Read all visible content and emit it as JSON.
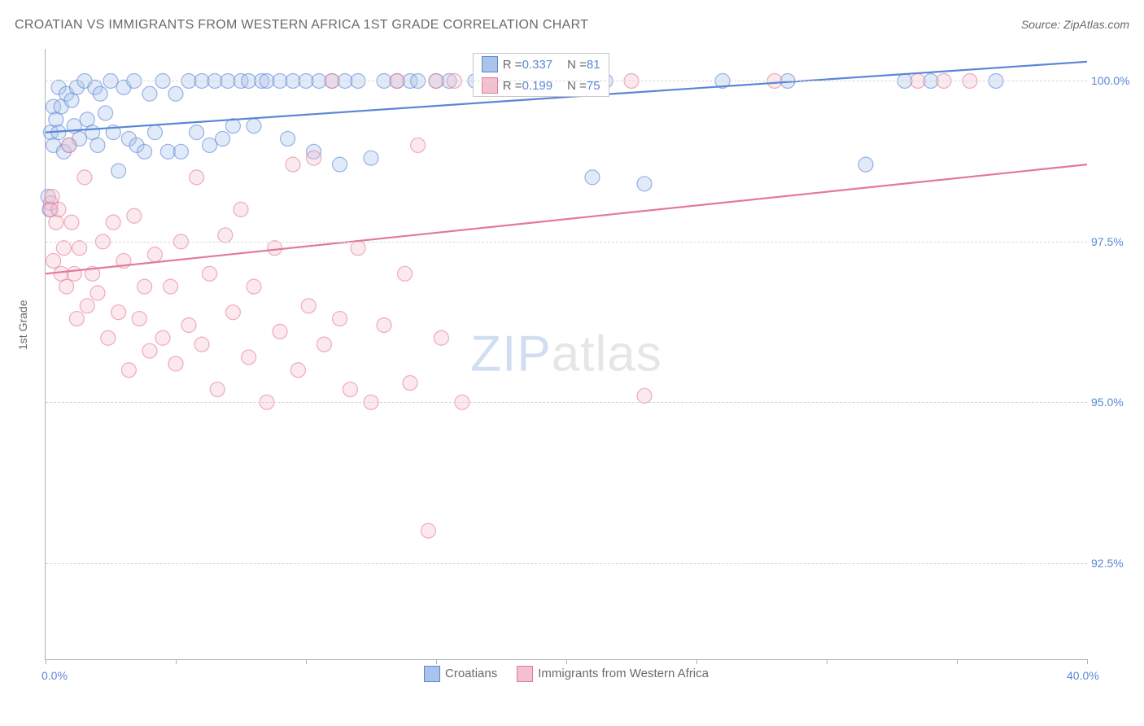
{
  "title": "CROATIAN VS IMMIGRANTS FROM WESTERN AFRICA 1ST GRADE CORRELATION CHART",
  "source": "Source: ZipAtlas.com",
  "ylabel": "1st Grade",
  "watermark_a": "ZIP",
  "watermark_b": "atlas",
  "chart": {
    "type": "scatter",
    "xlim": [
      0,
      40
    ],
    "ylim": [
      91,
      100.5
    ],
    "xtick_positions": [
      0,
      5,
      10,
      15,
      20,
      25,
      30,
      35,
      40
    ],
    "xtick_labels": {
      "0": "0.0%",
      "40": "40.0%"
    },
    "ytick_positions": [
      92.5,
      95.0,
      97.5,
      100.0
    ],
    "ytick_labels": [
      "92.5%",
      "95.0%",
      "97.5%",
      "100.0%"
    ],
    "grid_color": "#d8d8d8",
    "background_color": "#ffffff",
    "axis_color": "#b0b0b0",
    "label_color": "#5b86d6",
    "marker_radius": 9,
    "marker_opacity": 0.35,
    "line_width": 2.2
  },
  "series": [
    {
      "name": "Croatians",
      "label": "Croatians",
      "color": "#6699dd",
      "fill": "#a8c4ea",
      "stroke": "#5b86d6",
      "R": "0.337",
      "N": "81",
      "trend": {
        "x1": 0,
        "y1": 99.2,
        "x2": 40,
        "y2": 100.3
      },
      "points": [
        [
          0.1,
          98.2
        ],
        [
          0.15,
          98.0
        ],
        [
          0.2,
          99.2
        ],
        [
          0.3,
          99.0
        ],
        [
          0.3,
          99.6
        ],
        [
          0.4,
          99.4
        ],
        [
          0.5,
          99.9
        ],
        [
          0.5,
          99.2
        ],
        [
          0.6,
          99.6
        ],
        [
          0.7,
          98.9
        ],
        [
          0.8,
          99.8
        ],
        [
          0.9,
          99.0
        ],
        [
          1.0,
          99.7
        ],
        [
          1.1,
          99.3
        ],
        [
          1.2,
          99.9
        ],
        [
          1.3,
          99.1
        ],
        [
          1.5,
          100.0
        ],
        [
          1.6,
          99.4
        ],
        [
          1.8,
          99.2
        ],
        [
          1.9,
          99.9
        ],
        [
          2.0,
          99.0
        ],
        [
          2.1,
          99.8
        ],
        [
          2.3,
          99.5
        ],
        [
          2.5,
          100.0
        ],
        [
          2.6,
          99.2
        ],
        [
          2.8,
          98.6
        ],
        [
          3.0,
          99.9
        ],
        [
          3.2,
          99.1
        ],
        [
          3.4,
          100.0
        ],
        [
          3.5,
          99.0
        ],
        [
          3.8,
          98.9
        ],
        [
          4.0,
          99.8
        ],
        [
          4.2,
          99.2
        ],
        [
          4.5,
          100.0
        ],
        [
          4.7,
          98.9
        ],
        [
          5.0,
          99.8
        ],
        [
          5.2,
          98.9
        ],
        [
          5.5,
          100.0
        ],
        [
          5.8,
          99.2
        ],
        [
          6.0,
          100.0
        ],
        [
          6.3,
          99.0
        ],
        [
          6.5,
          100.0
        ],
        [
          6.8,
          99.1
        ],
        [
          7.0,
          100.0
        ],
        [
          7.2,
          99.3
        ],
        [
          7.5,
          100.0
        ],
        [
          7.8,
          100.0
        ],
        [
          8.0,
          99.3
        ],
        [
          8.3,
          100.0
        ],
        [
          8.5,
          100.0
        ],
        [
          9.0,
          100.0
        ],
        [
          9.3,
          99.1
        ],
        [
          9.5,
          100.0
        ],
        [
          10.0,
          100.0
        ],
        [
          10.3,
          98.9
        ],
        [
          10.5,
          100.0
        ],
        [
          11.0,
          100.0
        ],
        [
          11.3,
          98.7
        ],
        [
          11.5,
          100.0
        ],
        [
          12.0,
          100.0
        ],
        [
          12.5,
          98.8
        ],
        [
          13.0,
          100.0
        ],
        [
          13.5,
          100.0
        ],
        [
          14.0,
          100.0
        ],
        [
          14.3,
          100.0
        ],
        [
          15.0,
          100.0
        ],
        [
          15.5,
          100.0
        ],
        [
          16.5,
          100.0
        ],
        [
          17.0,
          100.0
        ],
        [
          18.0,
          100.0
        ],
        [
          19.5,
          100.0
        ],
        [
          20.0,
          100.0
        ],
        [
          21.0,
          98.5
        ],
        [
          21.5,
          100.0
        ],
        [
          23.0,
          98.4
        ],
        [
          26.0,
          100.0
        ],
        [
          28.5,
          100.0
        ],
        [
          31.5,
          98.7
        ],
        [
          33.0,
          100.0
        ],
        [
          34.0,
          100.0
        ],
        [
          36.5,
          100.0
        ]
      ]
    },
    {
      "name": "Immigrants from Western Africa",
      "label": "Immigrants from Western Africa",
      "color": "#e68aa4",
      "fill": "#f4c0cf",
      "stroke": "#e27a97",
      "R": "0.199",
      "N": "75",
      "trend": {
        "x1": 0,
        "y1": 97.0,
        "x2": 40,
        "y2": 98.7
      },
      "points": [
        [
          0.2,
          98.1
        ],
        [
          0.2,
          98.0
        ],
        [
          0.25,
          98.2
        ],
        [
          0.3,
          97.2
        ],
        [
          0.4,
          97.8
        ],
        [
          0.5,
          98.0
        ],
        [
          0.6,
          97.0
        ],
        [
          0.7,
          97.4
        ],
        [
          0.8,
          96.8
        ],
        [
          0.9,
          99.0
        ],
        [
          1.0,
          97.8
        ],
        [
          1.1,
          97.0
        ],
        [
          1.2,
          96.3
        ],
        [
          1.3,
          97.4
        ],
        [
          1.5,
          98.5
        ],
        [
          1.6,
          96.5
        ],
        [
          1.8,
          97.0
        ],
        [
          2.0,
          96.7
        ],
        [
          2.2,
          97.5
        ],
        [
          2.4,
          96.0
        ],
        [
          2.6,
          97.8
        ],
        [
          2.8,
          96.4
        ],
        [
          3.0,
          97.2
        ],
        [
          3.2,
          95.5
        ],
        [
          3.4,
          97.9
        ],
        [
          3.6,
          96.3
        ],
        [
          3.8,
          96.8
        ],
        [
          4.0,
          95.8
        ],
        [
          4.2,
          97.3
        ],
        [
          4.5,
          96.0
        ],
        [
          4.8,
          96.8
        ],
        [
          5.0,
          95.6
        ],
        [
          5.2,
          97.5
        ],
        [
          5.5,
          96.2
        ],
        [
          5.8,
          98.5
        ],
        [
          6.0,
          95.9
        ],
        [
          6.3,
          97.0
        ],
        [
          6.6,
          95.2
        ],
        [
          6.9,
          97.6
        ],
        [
          7.2,
          96.4
        ],
        [
          7.5,
          98.0
        ],
        [
          7.8,
          95.7
        ],
        [
          8.0,
          96.8
        ],
        [
          8.5,
          95.0
        ],
        [
          8.8,
          97.4
        ],
        [
          9.0,
          96.1
        ],
        [
          9.5,
          98.7
        ],
        [
          9.7,
          95.5
        ],
        [
          10.1,
          96.5
        ],
        [
          10.3,
          98.8
        ],
        [
          10.7,
          95.9
        ],
        [
          11.0,
          100.0
        ],
        [
          11.3,
          96.3
        ],
        [
          11.7,
          95.2
        ],
        [
          12.0,
          97.4
        ],
        [
          12.5,
          95.0
        ],
        [
          13.0,
          96.2
        ],
        [
          13.5,
          100.0
        ],
        [
          13.8,
          97.0
        ],
        [
          14.0,
          95.3
        ],
        [
          14.3,
          99.0
        ],
        [
          14.7,
          93.0
        ],
        [
          15.0,
          100.0
        ],
        [
          15.2,
          96.0
        ],
        [
          15.7,
          100.0
        ],
        [
          16.0,
          95.0
        ],
        [
          17.0,
          100.0
        ],
        [
          18.0,
          100.0
        ],
        [
          18.5,
          100.0
        ],
        [
          22.5,
          100.0
        ],
        [
          23.0,
          95.1
        ],
        [
          28.0,
          100.0
        ],
        [
          33.5,
          100.0
        ],
        [
          34.5,
          100.0
        ],
        [
          35.5,
          100.0
        ]
      ]
    }
  ],
  "legend_bottom": {
    "item1_label": "Croatians",
    "item2_label": "Immigrants from Western Africa"
  },
  "stats": {
    "r_prefix": "R = ",
    "n_prefix": "N = "
  }
}
